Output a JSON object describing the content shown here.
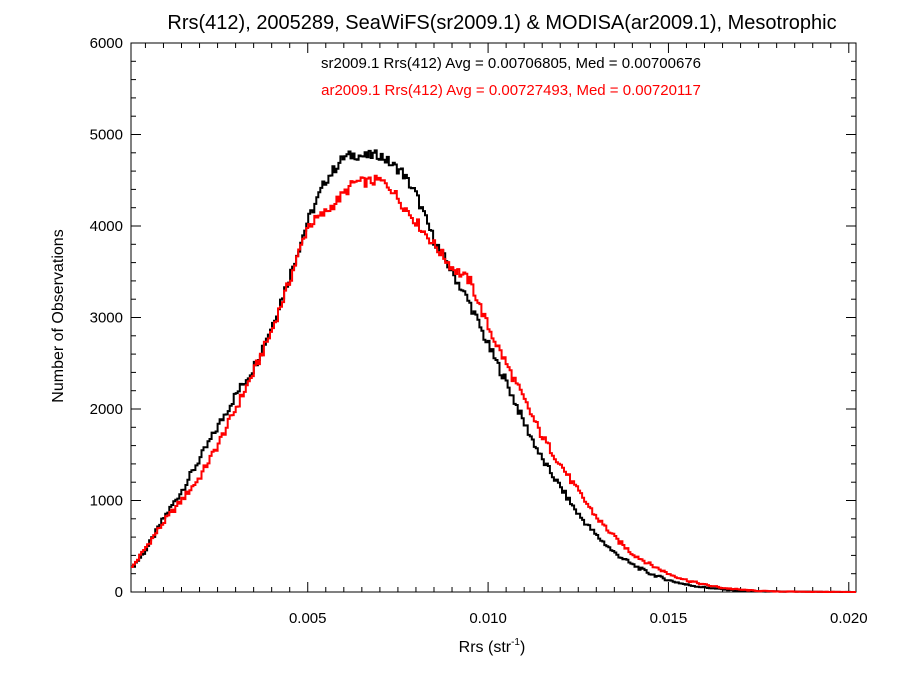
{
  "chart_data": {
    "type": "line",
    "title": "Rrs(412), 2005289, SeaWiFS(sr2009.1) & MODISA(ar2009.1), Mesotrophic",
    "xlabel_main": "Rrs (str",
    "xlabel_sup": "-1",
    "xlabel_close": ")",
    "ylabel": "Number of Observations",
    "xlim": [
      0.0001,
      0.0202
    ],
    "ylim": [
      0,
      6000
    ],
    "x_ticks": [
      0.005,
      0.01,
      0.015,
      0.02
    ],
    "x_tick_labels": [
      "0.005",
      "0.010",
      "0.015",
      "0.020"
    ],
    "y_ticks": [
      0,
      1000,
      2000,
      3000,
      4000,
      5000,
      6000
    ],
    "y_tick_labels": [
      "0",
      "1000",
      "2000",
      "3000",
      "4000",
      "5000",
      "6000"
    ],
    "grid": false,
    "annotations": [
      {
        "text": "sr2009.1 Rrs(412) Avg = 0.00706805, Med = 0.00700676",
        "color": "#000000"
      },
      {
        "text": "ar2009.1 Rrs(412) Avg = 0.00727493, Med = 0.00720117",
        "color": "#ff0000"
      }
    ],
    "series": [
      {
        "color": "#000000",
        "x": [
          0.0001,
          0.0005,
          0.001,
          0.0015,
          0.002,
          0.0025,
          0.003,
          0.0035,
          0.004,
          0.0045,
          0.005,
          0.0055,
          0.006,
          0.0063,
          0.0066,
          0.007,
          0.0073,
          0.0076,
          0.008,
          0.0085,
          0.009,
          0.0095,
          0.01,
          0.0105,
          0.011,
          0.0115,
          0.012,
          0.0125,
          0.013,
          0.0135,
          0.014,
          0.0145,
          0.015,
          0.0155,
          0.016,
          0.0165,
          0.017,
          0.0175,
          0.018,
          0.019,
          0.0202
        ],
        "y": [
          250,
          450,
          800,
          1100,
          1450,
          1800,
          2150,
          2450,
          2900,
          3450,
          4050,
          4500,
          4750,
          4780,
          4760,
          4780,
          4680,
          4600,
          4350,
          3850,
          3500,
          3150,
          2700,
          2300,
          1850,
          1450,
          1150,
          850,
          620,
          430,
          300,
          200,
          130,
          80,
          50,
          30,
          15,
          8,
          5,
          2,
          0
        ]
      },
      {
        "color": "#ff0000",
        "x": [
          0.0001,
          0.0005,
          0.001,
          0.0015,
          0.002,
          0.0025,
          0.003,
          0.0035,
          0.004,
          0.0045,
          0.005,
          0.0055,
          0.006,
          0.0063,
          0.0066,
          0.007,
          0.0073,
          0.0076,
          0.008,
          0.0085,
          0.009,
          0.0095,
          0.01,
          0.0105,
          0.011,
          0.0115,
          0.012,
          0.0125,
          0.013,
          0.0135,
          0.014,
          0.0145,
          0.015,
          0.0155,
          0.016,
          0.0165,
          0.017,
          0.0175,
          0.018,
          0.019,
          0.0202
        ],
        "y": [
          250,
          480,
          760,
          1000,
          1250,
          1600,
          2000,
          2400,
          2850,
          3400,
          4000,
          4150,
          4350,
          4480,
          4480,
          4500,
          4420,
          4250,
          4050,
          3800,
          3550,
          3400,
          2900,
          2500,
          2100,
          1700,
          1400,
          1100,
          820,
          600,
          420,
          300,
          200,
          130,
          80,
          45,
          25,
          12,
          6,
          2,
          0
        ]
      }
    ]
  }
}
